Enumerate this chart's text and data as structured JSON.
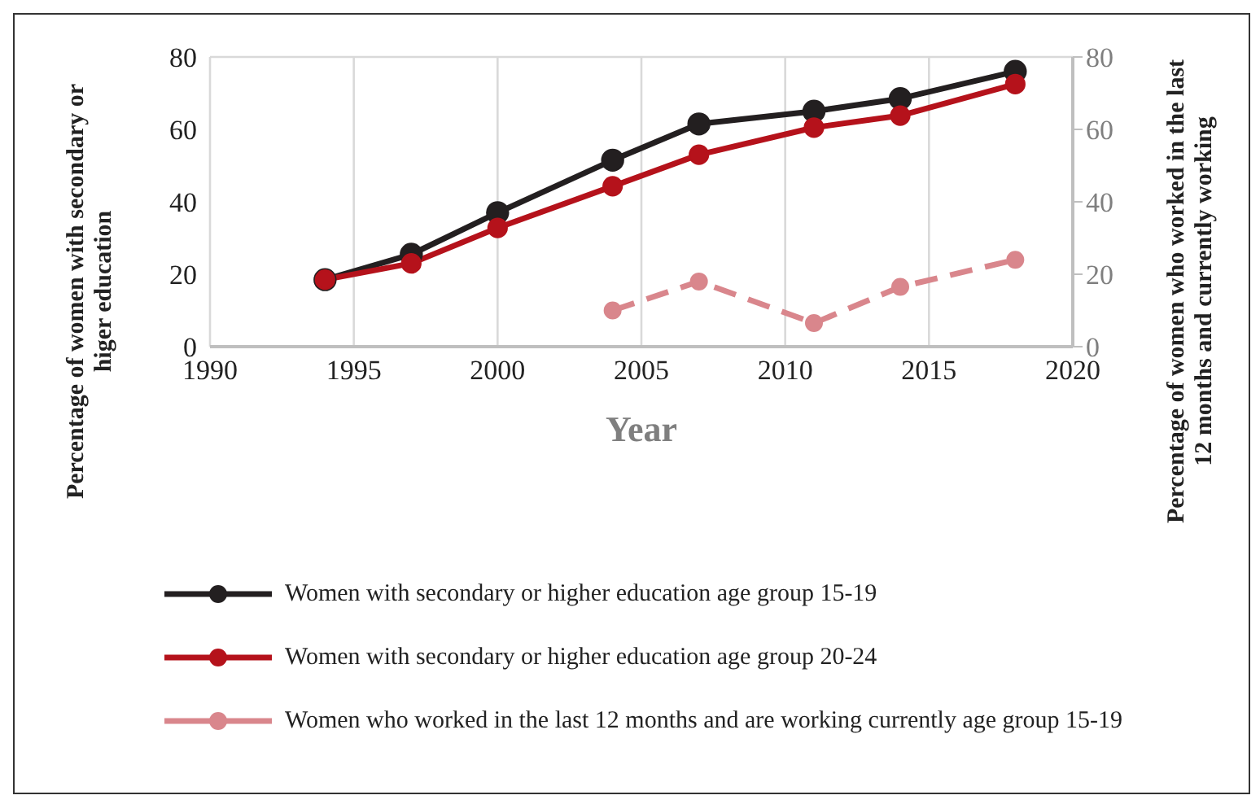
{
  "chart_data": {
    "type": "line",
    "xlabel": "Year",
    "ylabel": "Percentage of women with secondary or higer education",
    "y2label": "Percentage of women who worked in the last 12 months and currently working",
    "x": [
      1994,
      1997,
      2000,
      2004,
      2007,
      2011,
      2014,
      2018
    ],
    "series": [
      {
        "name": "Women with secondary or higher education age group 15-19",
        "color": "#231f20",
        "values": [
          18.5,
          25.5,
          37,
          51.5,
          61.5,
          65,
          68.5,
          76
        ]
      },
      {
        "name": "Women with secondary or higher education age group 20-24",
        "color": "#b5121b",
        "values": [
          18.5,
          23,
          32.8,
          44.3,
          53,
          60.5,
          63.8,
          72.5
        ]
      },
      {
        "name": "Women who worked in the last 12 months and are working currently age group 15-19",
        "color": "#d9868c",
        "axis": "y2",
        "line_style": "dashed",
        "values": [
          null,
          null,
          null,
          10,
          18,
          6.5,
          16.5,
          24
        ]
      }
    ],
    "xlim": [
      1990,
      2020
    ],
    "xticks": [
      1990,
      1995,
      2000,
      2005,
      2010,
      2015,
      2020
    ],
    "ylim": [
      0,
      80
    ],
    "yticks": [
      0,
      20,
      40,
      60,
      80
    ],
    "y2lim": [
      0,
      80
    ],
    "y2ticks": [
      0,
      20,
      40,
      60,
      80
    ],
    "grid": true,
    "legend": "bottom",
    "marker": "circle",
    "line_style": "solid"
  }
}
